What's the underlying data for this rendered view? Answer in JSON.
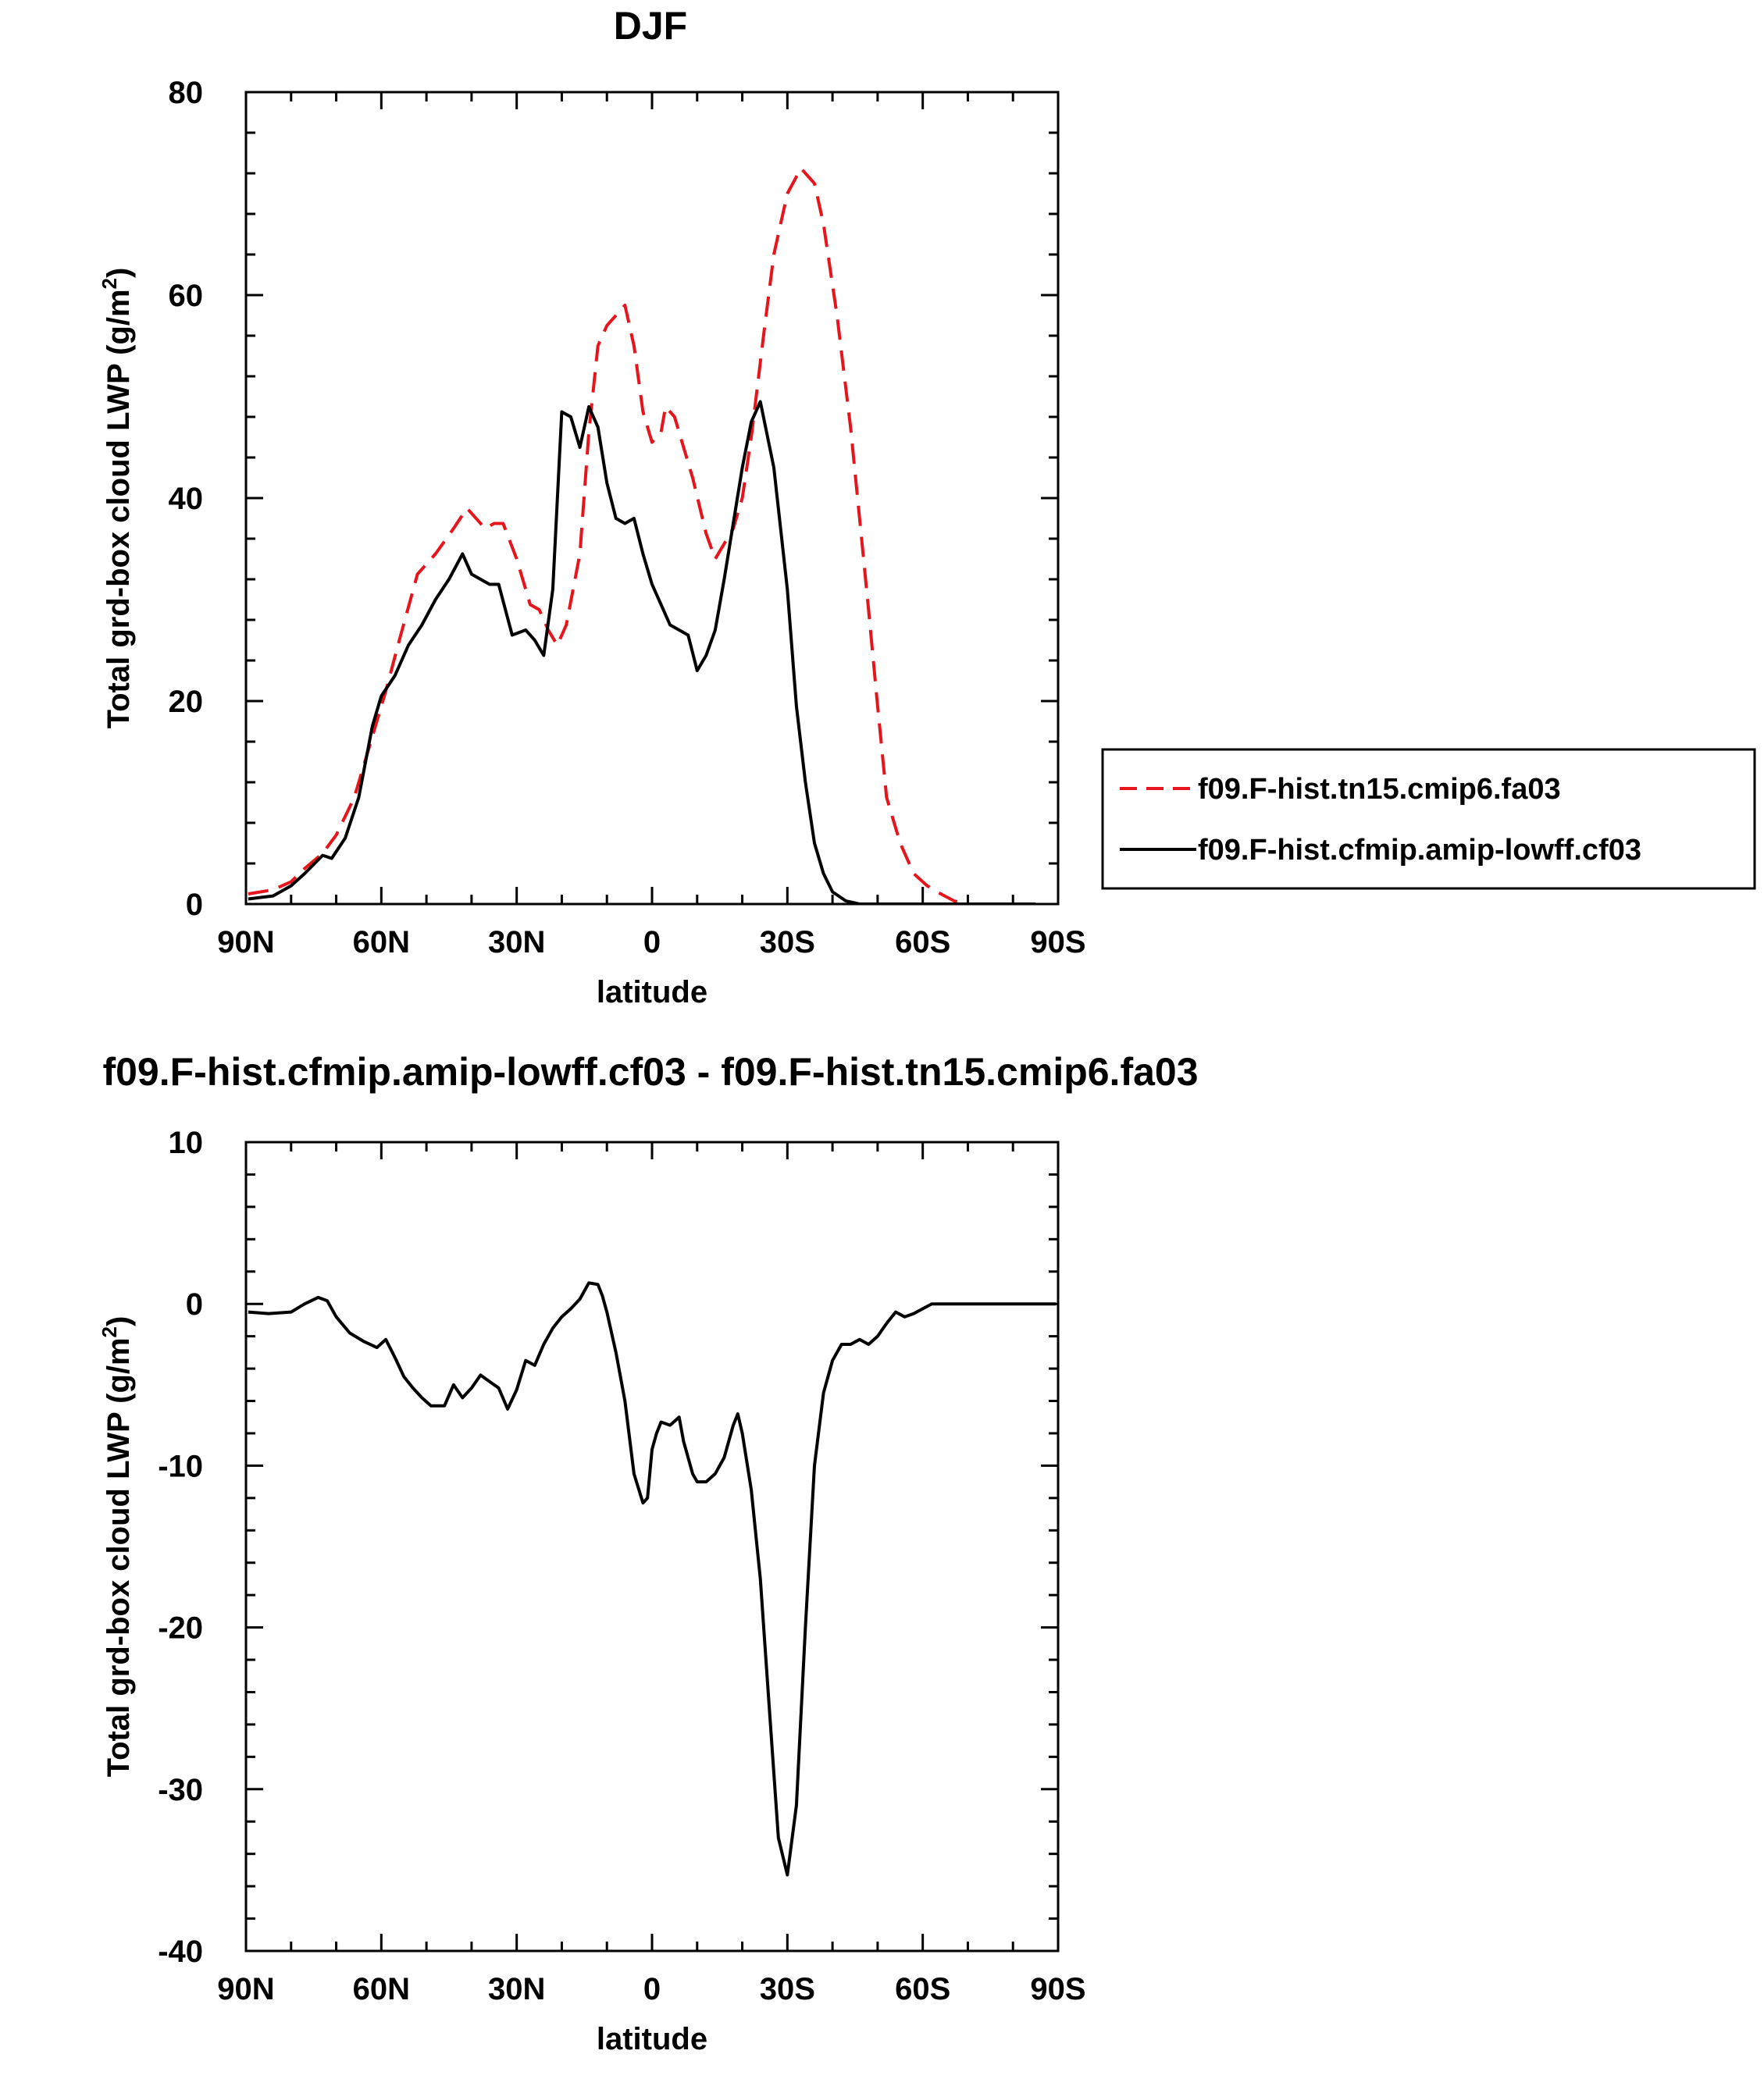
{
  "chart_data": [
    {
      "type": "line",
      "title": "DJF",
      "xlabel": "latitude",
      "ylabel": "Total grd-box cloud LWP (g/m",
      "ylabel_sup": "2",
      "ylabel_tail": ")",
      "xlim": [
        90,
        -90
      ],
      "ylim": [
        0,
        80
      ],
      "x_ticks": [
        90,
        60,
        30,
        0,
        -30,
        -60,
        -90
      ],
      "x_tick_labels": [
        "90N",
        "60N",
        "30N",
        "0",
        "30S",
        "60S",
        "90S"
      ],
      "y_ticks": [
        0,
        20,
        40,
        60,
        80
      ],
      "y_tick_labels": [
        "0",
        "20",
        "40",
        "60",
        "80"
      ],
      "legend_position": "right",
      "series": [
        {
          "name": "f09.F-hist.tn15.cmip6.fa03",
          "color": "#e8141b",
          "dash": "dashed",
          "x": [
            89.5,
            84,
            80,
            77,
            73,
            70,
            66,
            62,
            59,
            56,
            52,
            48,
            44,
            41,
            37,
            35,
            33,
            30,
            27,
            25,
            23,
            21,
            19,
            16,
            14,
            12,
            10,
            8,
            6,
            4,
            2,
            0,
            -2,
            -3,
            -5,
            -7,
            -9,
            -12,
            -14,
            -16,
            -18,
            -20,
            -22,
            -25,
            -27,
            -30,
            -33,
            -36,
            -38,
            -41,
            -44,
            -46,
            -48,
            -50,
            -52,
            -55,
            -58,
            -61,
            -64,
            -67,
            -70,
            -73,
            -76,
            -80,
            -83,
            -85
          ],
          "y": [
            1.0,
            1.4,
            2.2,
            3.5,
            5.0,
            6.8,
            10.5,
            16.5,
            21.0,
            26.0,
            32.5,
            34.5,
            37.0,
            39.0,
            37.0,
            37.5,
            37.5,
            34.0,
            29.5,
            29.0,
            27.0,
            25.5,
            27.5,
            34.5,
            46.5,
            55.0,
            57.0,
            58.0,
            59.0,
            55.0,
            48.5,
            45.5,
            46.5,
            49.0,
            48.0,
            45.0,
            42.0,
            36.5,
            34.0,
            35.5,
            37.0,
            40.0,
            46.0,
            57.0,
            64.0,
            70.0,
            72.5,
            71.0,
            67.0,
            58.0,
            47.0,
            38.0,
            29.0,
            19.5,
            10.5,
            6.0,
            3.0,
            1.8,
            1.0,
            0.3,
            0.0,
            0.0,
            0.0,
            0.0,
            0.0,
            0.0
          ]
        },
        {
          "name": "f09.F-hist.cfmip.amip-lowff.cf03",
          "color": "#000000",
          "dash": "solid",
          "x": [
            89.5,
            84,
            80,
            77,
            73,
            71,
            68,
            65,
            62,
            60,
            57,
            54,
            51,
            48,
            45,
            42,
            40,
            38,
            36,
            34,
            31,
            28,
            26,
            24,
            22,
            20,
            18,
            16,
            14,
            12,
            10,
            8,
            6,
            4,
            2,
            0,
            -2,
            -4,
            -6,
            -8,
            -10,
            -12,
            -14,
            -16,
            -18,
            -20,
            -22,
            -24,
            -27,
            -30,
            -32,
            -34,
            -36,
            -38,
            -40,
            -43,
            -46,
            -49,
            -52,
            -55,
            -57,
            -59,
            -61,
            -63,
            -65,
            -68,
            -71,
            -74,
            -77,
            -80,
            -83,
            -85
          ],
          "y": [
            0.5,
            0.8,
            1.8,
            3.0,
            4.8,
            4.5,
            6.5,
            10.5,
            17.5,
            20.5,
            22.5,
            25.5,
            27.5,
            30.0,
            32.0,
            34.5,
            32.5,
            32.0,
            31.5,
            31.5,
            26.5,
            27.0,
            26.0,
            24.5,
            31.0,
            48.5,
            48.0,
            45.0,
            49.0,
            47.0,
            41.5,
            38.0,
            37.5,
            38.0,
            34.5,
            31.5,
            29.5,
            27.5,
            27.0,
            26.5,
            23.0,
            24.5,
            27.0,
            32.0,
            37.5,
            43.0,
            47.5,
            49.5,
            43.0,
            31.0,
            19.5,
            12.0,
            6.0,
            3.0,
            1.2,
            0.3,
            0.0,
            0.0,
            0.0,
            0.0,
            0.0,
            0.0,
            0.0,
            0.0,
            0.0,
            0.0,
            0.0,
            0.0,
            0.0,
            0.0,
            0.0,
            0.0
          ]
        }
      ]
    },
    {
      "type": "line",
      "title": "f09.F-hist.cfmip.amip-lowff.cf03 - f09.F-hist.tn15.cmip6.fa03",
      "xlabel": "latitude",
      "ylabel": "Total grd-box cloud LWP (g/m",
      "ylabel_sup": "2",
      "ylabel_tail": ")",
      "xlim": [
        90,
        -90
      ],
      "ylim": [
        -40,
        10
      ],
      "x_ticks": [
        90,
        60,
        30,
        0,
        -30,
        -60,
        -90
      ],
      "x_tick_labels": [
        "90N",
        "60N",
        "30N",
        "0",
        "30S",
        "60S",
        "90S"
      ],
      "y_ticks": [
        -40,
        -30,
        -20,
        -10,
        0,
        10
      ],
      "y_tick_labels": [
        "-40",
        "-30",
        "-20",
        "-10",
        "0",
        "10"
      ],
      "series": [
        {
          "color": "#000000",
          "dash": "solid",
          "x": [
            89.5,
            85,
            80,
            77,
            74,
            72,
            70,
            67,
            64,
            61,
            59,
            57,
            55,
            53,
            51,
            49,
            46,
            44,
            42,
            40,
            38,
            36,
            34,
            32,
            30,
            28,
            26,
            24,
            22,
            20,
            18,
            16,
            14,
            12,
            11,
            10,
            8,
            6,
            4,
            2,
            1,
            0,
            -1,
            -2,
            -4,
            -6,
            -7,
            -8,
            -9,
            -10,
            -12,
            -14,
            -16,
            -18,
            -19,
            -20,
            -22,
            -24,
            -26,
            -28,
            -30,
            -32,
            -34,
            -36,
            -38,
            -40,
            -42,
            -44,
            -46,
            -48,
            -50,
            -52,
            -54,
            -56,
            -58,
            -60,
            -62,
            -64,
            -66,
            -68,
            -70,
            -72,
            -74,
            -77,
            -80,
            -84,
            -89.5
          ],
          "y": [
            -0.5,
            -0.6,
            -0.5,
            0.0,
            0.4,
            0.2,
            -0.8,
            -1.8,
            -2.3,
            -2.7,
            -2.2,
            -3.3,
            -4.5,
            -5.2,
            -5.8,
            -6.3,
            -6.3,
            -5.0,
            -5.8,
            -5.2,
            -4.4,
            -4.8,
            -5.2,
            -6.5,
            -5.3,
            -3.5,
            -3.8,
            -2.5,
            -1.5,
            -0.8,
            -0.3,
            0.3,
            1.3,
            1.2,
            0.5,
            -0.5,
            -3.0,
            -6.0,
            -10.5,
            -12.3,
            -12.0,
            -9.0,
            -8.0,
            -7.3,
            -7.5,
            -7.0,
            -8.5,
            -9.5,
            -10.5,
            -11.0,
            -11.0,
            -10.5,
            -9.5,
            -7.5,
            -6.8,
            -8.0,
            -11.5,
            -17.0,
            -25.0,
            -33.0,
            -35.3,
            -31.0,
            -20.0,
            -10.0,
            -5.5,
            -3.5,
            -2.5,
            -2.5,
            -2.2,
            -2.5,
            -2.0,
            -1.2,
            -0.5,
            -0.8,
            -0.6,
            -0.3,
            0.0,
            0.0,
            0.0,
            0.0,
            0.0,
            0.0,
            0.0,
            0.0,
            0.0,
            0.0,
            0.0
          ]
        }
      ]
    }
  ]
}
